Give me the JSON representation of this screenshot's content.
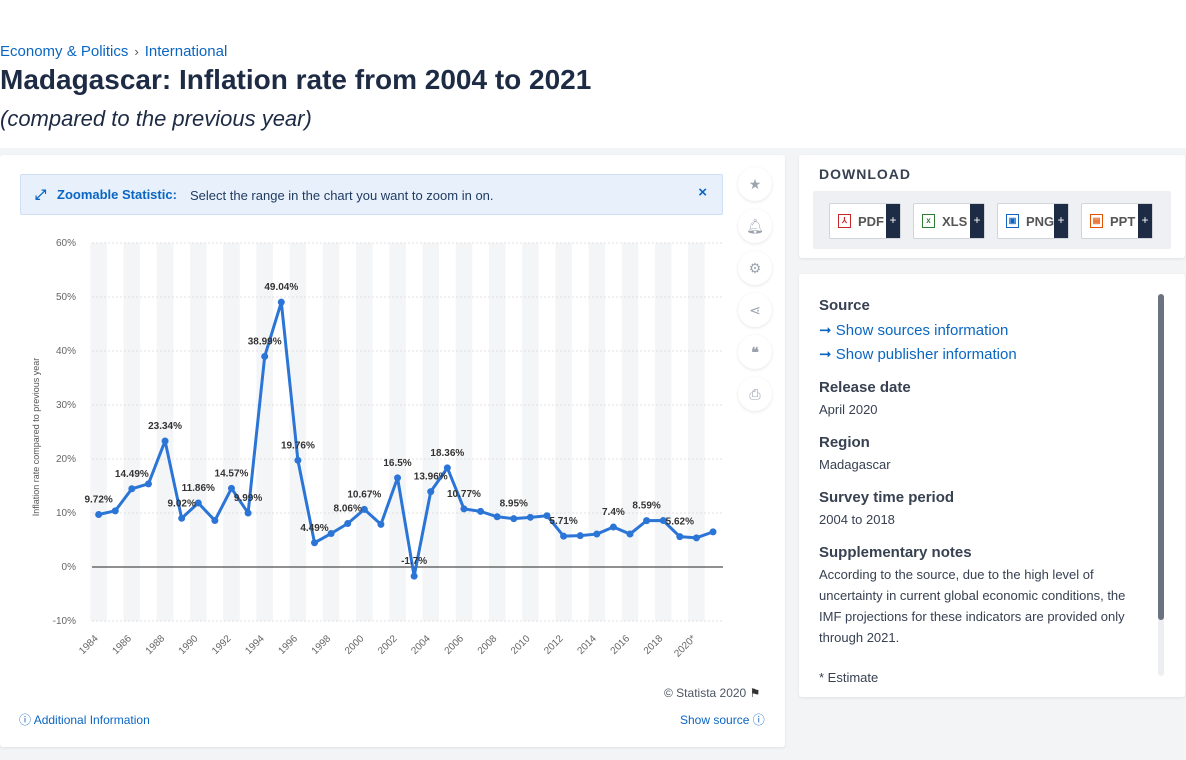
{
  "breadcrumb": {
    "item1": "Economy & Politics",
    "sep": "›",
    "item2": "International"
  },
  "page": {
    "title": "Madagascar: Inflation rate from 2004 to 2021",
    "subtitle": "(compared to the previous year)"
  },
  "zoom": {
    "label": "Zoomable Statistic:",
    "text": "Select the range in the chart you want to zoom in on.",
    "close": "×"
  },
  "footer": {
    "copyright": "© Statista 2020",
    "additional": "Additional Information",
    "show_source": "Show source"
  },
  "download": {
    "title": "DOWNLOAD",
    "pdf": "PDF",
    "xls": "XLS",
    "png": "PNG",
    "ppt": "PPT",
    "plus": "+"
  },
  "info": {
    "source_h": "Source",
    "sources_link": "Show sources information",
    "publisher_link": "Show publisher information",
    "release_h": "Release date",
    "release_v": "April 2020",
    "region_h": "Region",
    "region_v": "Madagascar",
    "period_h": "Survey time period",
    "period_v": "2004 to 2018",
    "notes_h": "Supplementary notes",
    "notes_v": "According to the source, due to the high level of uncertainty in current global economic conditions, the IMF projections for these indicators are provided only through 2021.",
    "estimate": "* Estimate"
  },
  "colors": {
    "accent": "#0b66c2",
    "line": "#2b75d6"
  },
  "chart_data": {
    "type": "line",
    "ylabel": "Inflation rate compared to previous year",
    "ylim": [
      -10,
      60
    ],
    "yticks": [
      "60%",
      "50%",
      "40%",
      "30%",
      "20%",
      "10%",
      "0%",
      "-10%"
    ],
    "xtick_labels": [
      "1984",
      "1986",
      "1988",
      "1990",
      "1992",
      "1994",
      "1996",
      "1998",
      "2000",
      "2002",
      "2004",
      "2006",
      "2008",
      "2010",
      "2012",
      "2014",
      "2016",
      "2018",
      "2020*"
    ],
    "x": [
      1984,
      1985,
      1986,
      1987,
      1988,
      1989,
      1990,
      1991,
      1992,
      1993,
      1994,
      1995,
      1996,
      1997,
      1998,
      1999,
      2000,
      2001,
      2002,
      2003,
      2004,
      2005,
      2006,
      2007,
      2008,
      2009,
      2010,
      2011,
      2012,
      2013,
      2014,
      2015,
      2016,
      2017,
      2018,
      2019,
      2020,
      2021
    ],
    "values": [
      9.72,
      10.4,
      14.49,
      15.4,
      23.34,
      9.02,
      11.86,
      8.6,
      14.57,
      9.99,
      38.99,
      49.04,
      19.76,
      4.49,
      6.2,
      8.06,
      10.67,
      7.9,
      16.5,
      -1.7,
      13.96,
      18.36,
      10.77,
      10.3,
      9.3,
      8.95,
      9.2,
      9.5,
      5.71,
      5.8,
      6.1,
      7.4,
      6.1,
      8.59,
      8.6,
      5.62,
      5.4,
      6.5
    ],
    "labels": {
      "1984": "9.72%",
      "1986": "14.49%",
      "1988": "23.34%",
      "1989": "9.02%",
      "1990": "11.86%",
      "1992": "14.57%",
      "1993": "9.99%",
      "1994": "38.99%",
      "1995": "49.04%",
      "1996": "19.76%",
      "1997": "4.49%",
      "1999": "8.06%",
      "2000": "10.67%",
      "2002": "16.5%",
      "2003": "-1.7%",
      "2004": "13.96%",
      "2005": "18.36%",
      "2006": "10.77%",
      "2009": "8.95%",
      "2012": "5.71%",
      "2015": "7.4%",
      "2017": "8.59%",
      "2019": "5.62%"
    },
    "grid": true
  }
}
